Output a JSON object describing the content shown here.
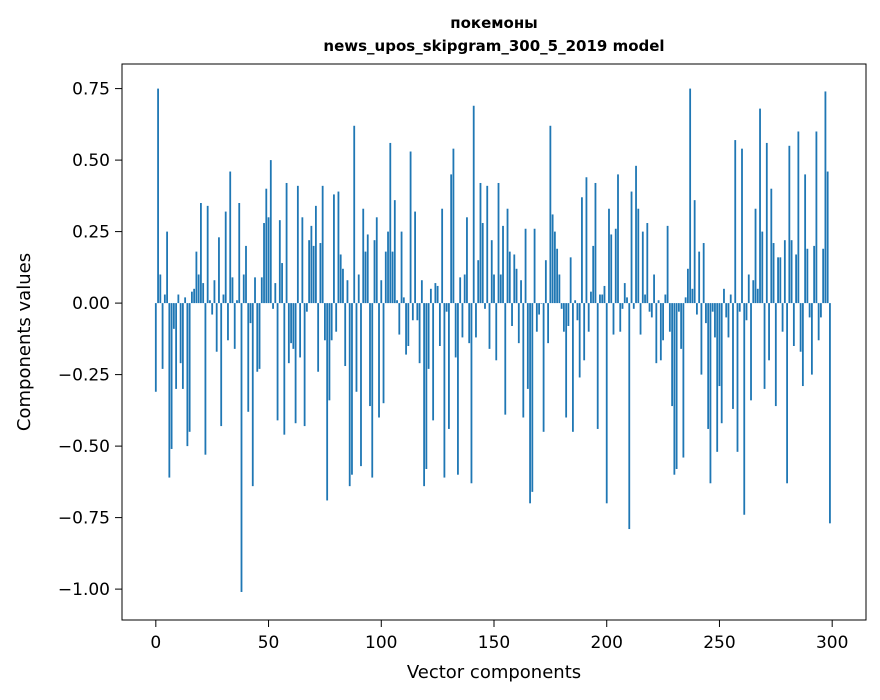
{
  "chart_data": {
    "type": "bar",
    "title": "покемоны",
    "subtitle": "news_upos_skipgram_300_5_2019 model",
    "xlabel": "Vector components",
    "ylabel": "Components values",
    "xlim": [
      -15,
      315
    ],
    "ylim": [
      -1.108,
      0.836
    ],
    "xticks": [
      "0",
      "50",
      "100",
      "150",
      "200",
      "250",
      "300"
    ],
    "xtick_values": [
      0,
      50,
      100,
      150,
      200,
      250,
      300
    ],
    "yticks": [
      "−1.00",
      "−0.75",
      "−0.50",
      "−0.25",
      "0.00",
      "0.25",
      "0.50",
      "0.75"
    ],
    "ytick_values": [
      -1.0,
      -0.75,
      -0.5,
      -0.25,
      0,
      0.25,
      0.5,
      0.75
    ],
    "grid": false,
    "bar_color": "#1f77b4",
    "values": [
      -0.31,
      0.75,
      0.1,
      -0.23,
      0.03,
      0.25,
      -0.61,
      -0.51,
      -0.09,
      -0.3,
      0.03,
      -0.21,
      -0.3,
      0.02,
      -0.5,
      -0.45,
      0.04,
      0.05,
      0.18,
      0.1,
      0.35,
      0.07,
      -0.53,
      0.34,
      0.01,
      -0.04,
      0.08,
      -0.17,
      0.23,
      -0.43,
      0.03,
      0.32,
      -0.13,
      0.46,
      0.09,
      -0.16,
      0.01,
      0.35,
      -1.01,
      0.1,
      0.2,
      -0.38,
      -0.07,
      -0.64,
      0.09,
      -0.24,
      -0.23,
      0.09,
      0.28,
      0.4,
      0.3,
      0.5,
      -0.02,
      0.07,
      -0.41,
      0.29,
      0.14,
      -0.46,
      0.42,
      -0.21,
      -0.14,
      -0.16,
      -0.42,
      0.41,
      -0.19,
      0.3,
      -0.43,
      -0.03,
      0.22,
      0.27,
      0.2,
      0.34,
      -0.24,
      0.21,
      0.41,
      -0.13,
      -0.69,
      -0.34,
      -0.13,
      0.38,
      -0.1,
      0.39,
      0.17,
      0.12,
      -0.22,
      0.08,
      -0.64,
      -0.6,
      0.62,
      -0.31,
      0.1,
      -0.57,
      0.33,
      0.18,
      0.24,
      -0.36,
      -0.61,
      0.22,
      0.3,
      -0.4,
      0.08,
      -0.35,
      0.18,
      0.25,
      0.56,
      0.18,
      0.36,
      0.01,
      -0.11,
      0.25,
      0.02,
      -0.18,
      -0.15,
      0.53,
      -0.06,
      0.32,
      -0.06,
      -0.21,
      0.08,
      -0.64,
      -0.58,
      -0.23,
      0.05,
      -0.41,
      0.07,
      0.06,
      -0.15,
      0.33,
      -0.61,
      -0.03,
      -0.44,
      0.45,
      0.54,
      -0.19,
      -0.6,
      0.09,
      -0.12,
      0.1,
      0.3,
      -0.14,
      -0.63,
      0.69,
      -0.12,
      0.15,
      0.42,
      0.28,
      -0.02,
      0.41,
      -0.16,
      0.22,
      0.1,
      -0.2,
      0.42,
      0.1,
      0.27,
      -0.39,
      0.33,
      0.18,
      -0.08,
      0.17,
      0.12,
      -0.14,
      0.08,
      -0.4,
      0.26,
      -0.3,
      -0.7,
      -0.66,
      0.26,
      -0.1,
      -0.04,
      0.0,
      -0.45,
      0.15,
      -0.14,
      0.62,
      0.31,
      0.25,
      0.19,
      0.1,
      -0.02,
      -0.1,
      -0.4,
      -0.08,
      0.16,
      -0.45,
      0.01,
      -0.06,
      -0.26,
      0.37,
      -0.2,
      0.44,
      -0.1,
      0.04,
      0.2,
      0.42,
      -0.44,
      0.03,
      0.03,
      0.06,
      -0.7,
      0.33,
      0.24,
      -0.11,
      0.26,
      0.45,
      -0.1,
      -0.02,
      0.07,
      0.02,
      -0.79,
      0.39,
      -0.02,
      0.48,
      0.33,
      -0.11,
      0.25,
      0.03,
      0.28,
      -0.03,
      -0.05,
      0.1,
      -0.21,
      0.01,
      -0.2,
      -0.13,
      0.03,
      0.27,
      -0.1,
      -0.36,
      -0.6,
      -0.58,
      -0.03,
      -0.16,
      -0.54,
      0.02,
      0.12,
      0.75,
      0.05,
      0.36,
      -0.04,
      0.18,
      -0.25,
      0.21,
      -0.07,
      -0.44,
      -0.63,
      -0.03,
      -0.12,
      -0.52,
      -0.29,
      -0.42,
      0.05,
      -0.05,
      -0.12,
      0.03,
      -0.37,
      0.57,
      -0.52,
      -0.03,
      0.54,
      -0.74,
      -0.06,
      0.1,
      -0.34,
      0.08,
      0.33,
      0.05,
      0.68,
      0.25,
      -0.3,
      0.56,
      -0.2,
      0.4,
      0.21,
      -0.36,
      0.16,
      0.16,
      -0.1,
      0.22,
      -0.63,
      0.55,
      0.22,
      -0.15,
      0.17,
      0.6,
      -0.17,
      -0.29,
      0.45,
      0.19,
      -0.05,
      -0.25,
      0.2,
      0.6,
      -0.13,
      -0.05,
      0.19,
      0.74,
      0.46,
      -0.77
    ]
  }
}
